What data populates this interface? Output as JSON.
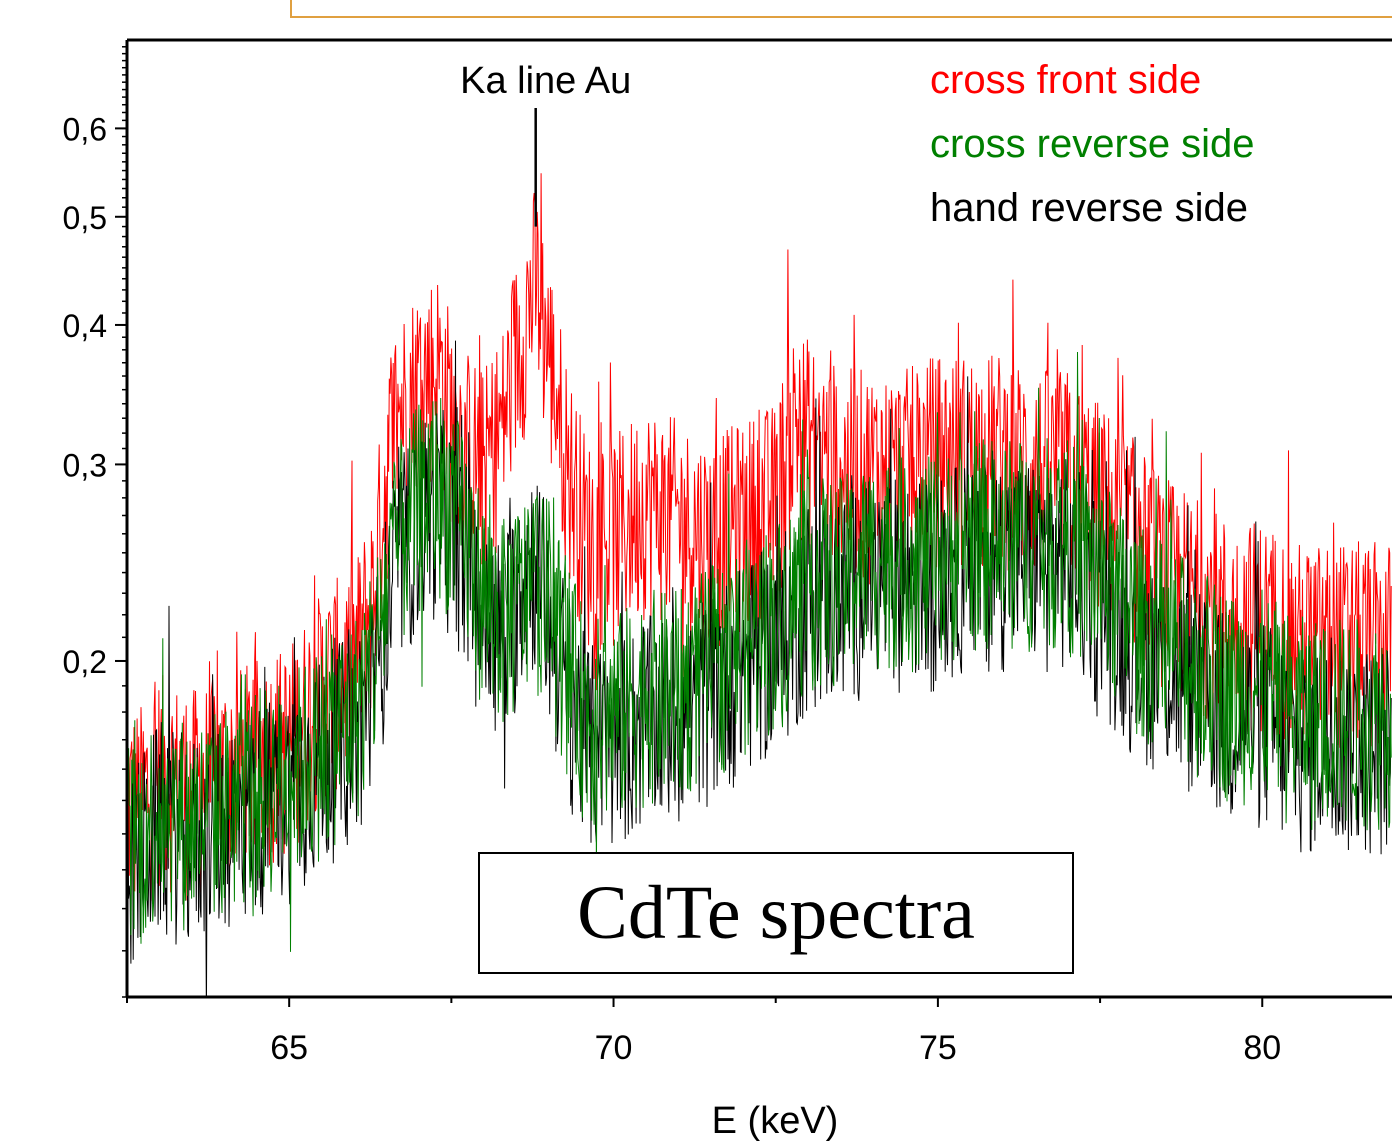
{
  "chart_data": {
    "type": "line",
    "title": "",
    "xlabel": "E (keV)",
    "ylabel": "",
    "xlim": [
      62.5,
      82.0
    ],
    "ylim": [
      0.1,
      0.72
    ],
    "yscale": "log",
    "x_ticks": [
      65,
      70,
      75,
      80
    ],
    "x_tick_labels": [
      "65",
      "70",
      "75",
      "80"
    ],
    "y_ticks": [
      0.2,
      0.3,
      0.4,
      0.5,
      0.6
    ],
    "y_tick_labels": [
      "0,2",
      "0,3",
      "0,4",
      "0,5",
      "0,6"
    ],
    "legend_position": "top-right",
    "series": [
      {
        "name": "cross front side",
        "color": "#ff0000",
        "x": [
          62.7,
          63.0,
          63.5,
          64.0,
          64.5,
          65.0,
          65.5,
          66.0,
          66.3,
          66.6,
          67.0,
          67.3,
          67.6,
          68.0,
          68.3,
          68.6,
          68.8,
          69.0,
          69.3,
          69.6,
          70.0,
          70.5,
          71.0,
          71.5,
          72.0,
          72.5,
          72.8,
          73.0,
          73.5,
          74.0,
          74.5,
          75.0,
          75.5,
          76.0,
          76.5,
          77.0,
          77.5,
          78.0,
          78.5,
          79.0,
          79.5,
          80.0,
          80.5,
          81.0,
          81.5,
          82.0
        ],
        "y": [
          0.15,
          0.16,
          0.155,
          0.16,
          0.165,
          0.17,
          0.19,
          0.2,
          0.23,
          0.33,
          0.36,
          0.37,
          0.32,
          0.3,
          0.33,
          0.4,
          0.44,
          0.38,
          0.3,
          0.26,
          0.26,
          0.28,
          0.27,
          0.26,
          0.27,
          0.28,
          0.33,
          0.32,
          0.3,
          0.3,
          0.3,
          0.31,
          0.31,
          0.31,
          0.3,
          0.3,
          0.28,
          0.26,
          0.24,
          0.23,
          0.22,
          0.22,
          0.21,
          0.21,
          0.21,
          0.21
        ]
      },
      {
        "name": "cross reverse side",
        "color": "#008000",
        "x": [
          62.7,
          63.0,
          63.5,
          64.0,
          64.5,
          65.0,
          65.5,
          66.0,
          66.3,
          66.6,
          67.0,
          67.3,
          67.6,
          68.0,
          68.3,
          68.6,
          68.8,
          69.0,
          69.3,
          69.6,
          70.0,
          70.5,
          71.0,
          71.5,
          72.0,
          72.5,
          72.8,
          73.0,
          73.5,
          74.0,
          74.5,
          75.0,
          75.5,
          76.0,
          76.5,
          77.0,
          77.5,
          78.0,
          78.5,
          79.0,
          79.5,
          80.0,
          80.5,
          81.0,
          81.5,
          82.0
        ],
        "y": [
          0.14,
          0.15,
          0.145,
          0.15,
          0.155,
          0.16,
          0.17,
          0.18,
          0.2,
          0.25,
          0.28,
          0.29,
          0.27,
          0.23,
          0.22,
          0.23,
          0.24,
          0.23,
          0.2,
          0.18,
          0.18,
          0.19,
          0.19,
          0.2,
          0.21,
          0.22,
          0.23,
          0.24,
          0.24,
          0.25,
          0.25,
          0.25,
          0.26,
          0.26,
          0.26,
          0.26,
          0.24,
          0.22,
          0.21,
          0.2,
          0.19,
          0.19,
          0.18,
          0.18,
          0.18,
          0.18
        ]
      },
      {
        "name": "hand reverse side",
        "color": "#000000",
        "x": [
          62.7,
          63.0,
          63.5,
          64.0,
          64.5,
          65.0,
          65.5,
          66.0,
          66.3,
          66.6,
          67.0,
          67.3,
          67.6,
          68.0,
          68.3,
          68.6,
          68.8,
          69.0,
          69.3,
          69.6,
          70.0,
          70.5,
          71.0,
          71.5,
          72.0,
          72.5,
          72.8,
          73.0,
          73.5,
          74.0,
          74.5,
          75.0,
          75.5,
          76.0,
          76.5,
          77.0,
          77.5,
          78.0,
          78.5,
          79.0,
          79.5,
          80.0,
          80.5,
          81.0,
          81.5,
          82.0
        ],
        "y": [
          0.135,
          0.145,
          0.14,
          0.145,
          0.15,
          0.155,
          0.165,
          0.175,
          0.19,
          0.24,
          0.27,
          0.28,
          0.26,
          0.22,
          0.21,
          0.24,
          0.25,
          0.22,
          0.19,
          0.17,
          0.17,
          0.18,
          0.18,
          0.19,
          0.2,
          0.21,
          0.22,
          0.23,
          0.23,
          0.24,
          0.24,
          0.24,
          0.25,
          0.25,
          0.25,
          0.25,
          0.23,
          0.21,
          0.2,
          0.19,
          0.18,
          0.18,
          0.17,
          0.17,
          0.17,
          0.17
        ]
      }
    ],
    "annotations": [
      {
        "text": "Ka line Au",
        "x": 68.8,
        "y": 0.49
      }
    ],
    "caption": "CdTe spectra"
  }
}
